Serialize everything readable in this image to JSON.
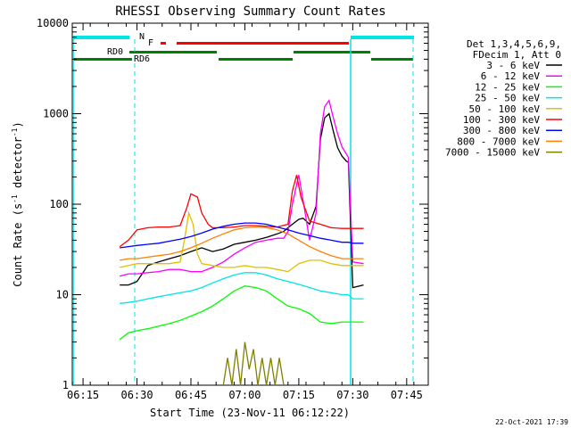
{
  "chart_data": {
    "type": "line",
    "title": "RHESSI Observing Summary Count Rates",
    "xlabel": "Start Time (23-Nov-11 06:12:22)",
    "ylabel": "Count Rate (s^-1 detector^-1)",
    "ylabel_main": "Count Rate (s",
    "ylabel_sup1": "-1",
    "ylabel_mid": " detector",
    "ylabel_sup2": "-1",
    "ylabel_end": ")",
    "yscale": "log",
    "ylim": [
      1,
      10000
    ],
    "xlim": [
      6.2,
      7.85
    ],
    "x_unit": "hours UT",
    "x_ticks": [
      {
        "v": 6.25,
        "label": "06:15"
      },
      {
        "v": 6.5,
        "label": "06:30"
      },
      {
        "v": 6.75,
        "label": "06:45"
      },
      {
        "v": 7.0,
        "label": "07:00"
      },
      {
        "v": 7.25,
        "label": "07:15"
      },
      {
        "v": 7.5,
        "label": "07:30"
      },
      {
        "v": 7.75,
        "label": "07:45"
      }
    ],
    "y_ticks": [
      {
        "v": 1,
        "label": "1"
      },
      {
        "v": 10,
        "label": "10"
      },
      {
        "v": 100,
        "label": "100"
      },
      {
        "v": 1000,
        "label": "1000"
      },
      {
        "v": 10000,
        "label": "10000"
      }
    ],
    "legend_header": [
      "Det 1,3,4,5,6,9,",
      "FDecim 1, Att 0"
    ],
    "legend_position": "right",
    "series": [
      {
        "name": "3 - 6 keV",
        "color": "#000000",
        "points": [
          [
            6.42,
            12.8
          ],
          [
            6.46,
            12.8
          ],
          [
            6.5,
            14
          ],
          [
            6.55,
            21
          ],
          [
            6.6,
            23
          ],
          [
            6.65,
            25
          ],
          [
            6.7,
            27
          ],
          [
            6.75,
            30
          ],
          [
            6.8,
            33
          ],
          [
            6.85,
            30
          ],
          [
            6.9,
            32
          ],
          [
            6.95,
            36
          ],
          [
            7.0,
            38
          ],
          [
            7.05,
            40
          ],
          [
            7.1,
            43
          ],
          [
            7.15,
            47
          ],
          [
            7.18,
            50
          ],
          [
            7.2,
            55
          ],
          [
            7.22,
            60
          ],
          [
            7.25,
            68
          ],
          [
            7.27,
            70
          ],
          [
            7.3,
            60
          ],
          [
            7.33,
            95
          ],
          [
            7.35,
            520
          ],
          [
            7.37,
            900
          ],
          [
            7.39,
            1000
          ],
          [
            7.41,
            640
          ],
          [
            7.43,
            420
          ],
          [
            7.45,
            340
          ],
          [
            7.47,
            300
          ],
          [
            7.48,
            290
          ],
          [
            7.5,
            12
          ],
          [
            7.55,
            12.8
          ]
        ]
      },
      {
        "name": "6 - 12 keV",
        "color": "#ff00ff",
        "points": [
          [
            6.42,
            16
          ],
          [
            6.46,
            17
          ],
          [
            6.5,
            17
          ],
          [
            6.55,
            17.5
          ],
          [
            6.6,
            18
          ],
          [
            6.65,
            19
          ],
          [
            6.7,
            19
          ],
          [
            6.75,
            18
          ],
          [
            6.8,
            18
          ],
          [
            6.85,
            20
          ],
          [
            6.9,
            23
          ],
          [
            6.95,
            28
          ],
          [
            7.0,
            33
          ],
          [
            7.05,
            38
          ],
          [
            7.1,
            40
          ],
          [
            7.15,
            42
          ],
          [
            7.18,
            42
          ],
          [
            7.2,
            50
          ],
          [
            7.22,
            100
          ],
          [
            7.25,
            210
          ],
          [
            7.27,
            110
          ],
          [
            7.3,
            40
          ],
          [
            7.33,
            80
          ],
          [
            7.35,
            600
          ],
          [
            7.37,
            1200
          ],
          [
            7.39,
            1400
          ],
          [
            7.41,
            900
          ],
          [
            7.43,
            600
          ],
          [
            7.45,
            430
          ],
          [
            7.47,
            360
          ],
          [
            7.48,
            330
          ],
          [
            7.5,
            23
          ],
          [
            7.55,
            22
          ]
        ]
      },
      {
        "name": "12 - 25 keV",
        "color": "#00ff00",
        "points": [
          [
            6.42,
            3.2
          ],
          [
            6.46,
            3.8
          ],
          [
            6.5,
            4.0
          ],
          [
            6.55,
            4.2
          ],
          [
            6.6,
            4.5
          ],
          [
            6.65,
            4.8
          ],
          [
            6.7,
            5.2
          ],
          [
            6.75,
            5.8
          ],
          [
            6.8,
            6.5
          ],
          [
            6.85,
            7.5
          ],
          [
            6.9,
            9
          ],
          [
            6.95,
            11
          ],
          [
            7.0,
            12.5
          ],
          [
            7.05,
            12
          ],
          [
            7.1,
            11
          ],
          [
            7.15,
            9
          ],
          [
            7.2,
            7.5
          ],
          [
            7.25,
            7
          ],
          [
            7.3,
            6.2
          ],
          [
            7.35,
            5
          ],
          [
            7.4,
            4.8
          ],
          [
            7.45,
            5
          ],
          [
            7.48,
            5
          ],
          [
            7.5,
            5
          ],
          [
            7.55,
            5
          ]
        ]
      },
      {
        "name": "25 - 50 keV",
        "color": "#00e5e5",
        "points": [
          [
            6.42,
            8
          ],
          [
            6.46,
            8.2
          ],
          [
            6.5,
            8.5
          ],
          [
            6.55,
            9
          ],
          [
            6.6,
            9.5
          ],
          [
            6.65,
            10
          ],
          [
            6.7,
            10.5
          ],
          [
            6.75,
            11
          ],
          [
            6.8,
            12
          ],
          [
            6.85,
            13.5
          ],
          [
            6.9,
            15
          ],
          [
            6.95,
            16.5
          ],
          [
            7.0,
            17.5
          ],
          [
            7.05,
            17.5
          ],
          [
            7.1,
            16.5
          ],
          [
            7.15,
            15
          ],
          [
            7.2,
            14
          ],
          [
            7.25,
            13
          ],
          [
            7.3,
            12
          ],
          [
            7.35,
            11
          ],
          [
            7.4,
            10.5
          ],
          [
            7.45,
            10
          ],
          [
            7.48,
            10
          ],
          [
            7.5,
            9
          ],
          [
            7.55,
            9
          ]
        ]
      },
      {
        "name": "50 - 100 keV",
        "color": "#e0c000",
        "points": [
          [
            6.42,
            20
          ],
          [
            6.46,
            21
          ],
          [
            6.5,
            22
          ],
          [
            6.55,
            22
          ],
          [
            6.6,
            22
          ],
          [
            6.65,
            22
          ],
          [
            6.7,
            23
          ],
          [
            6.72,
            40
          ],
          [
            6.74,
            80
          ],
          [
            6.76,
            60
          ],
          [
            6.78,
            28
          ],
          [
            6.8,
            22
          ],
          [
            6.85,
            21
          ],
          [
            6.9,
            20
          ],
          [
            6.95,
            20
          ],
          [
            7.0,
            21
          ],
          [
            7.05,
            20
          ],
          [
            7.1,
            20
          ],
          [
            7.15,
            19
          ],
          [
            7.2,
            18
          ],
          [
            7.25,
            22
          ],
          [
            7.3,
            24
          ],
          [
            7.35,
            24
          ],
          [
            7.4,
            22
          ],
          [
            7.45,
            21
          ],
          [
            7.48,
            21
          ],
          [
            7.5,
            21
          ],
          [
            7.55,
            21
          ]
        ]
      },
      {
        "name": "100 - 300 keV",
        "color": "#ff0000",
        "points": [
          [
            6.42,
            34
          ],
          [
            6.46,
            40
          ],
          [
            6.5,
            52
          ],
          [
            6.55,
            55
          ],
          [
            6.6,
            56
          ],
          [
            6.65,
            56
          ],
          [
            6.7,
            58
          ],
          [
            6.73,
            90
          ],
          [
            6.75,
            130
          ],
          [
            6.78,
            120
          ],
          [
            6.8,
            80
          ],
          [
            6.83,
            60
          ],
          [
            6.85,
            55
          ],
          [
            6.9,
            55
          ],
          [
            6.95,
            56
          ],
          [
            7.0,
            58
          ],
          [
            7.05,
            58
          ],
          [
            7.1,
            57
          ],
          [
            7.15,
            56
          ],
          [
            7.2,
            60
          ],
          [
            7.22,
            140
          ],
          [
            7.24,
            210
          ],
          [
            7.26,
            120
          ],
          [
            7.3,
            65
          ],
          [
            7.35,
            60
          ],
          [
            7.4,
            55
          ],
          [
            7.45,
            54
          ],
          [
            7.48,
            54
          ],
          [
            7.5,
            54
          ],
          [
            7.55,
            54
          ]
        ]
      },
      {
        "name": "300 - 800 keV",
        "color": "#0000ff",
        "points": [
          [
            6.42,
            33
          ],
          [
            6.46,
            34
          ],
          [
            6.5,
            35
          ],
          [
            6.55,
            36
          ],
          [
            6.6,
            37
          ],
          [
            6.65,
            39
          ],
          [
            6.7,
            41
          ],
          [
            6.75,
            44
          ],
          [
            6.8,
            48
          ],
          [
            6.85,
            53
          ],
          [
            6.9,
            57
          ],
          [
            6.95,
            60
          ],
          [
            7.0,
            62
          ],
          [
            7.05,
            62
          ],
          [
            7.1,
            60
          ],
          [
            7.15,
            56
          ],
          [
            7.2,
            52
          ],
          [
            7.25,
            48
          ],
          [
            7.3,
            45
          ],
          [
            7.35,
            42
          ],
          [
            7.4,
            40
          ],
          [
            7.45,
            38
          ],
          [
            7.48,
            38
          ],
          [
            7.5,
            37
          ],
          [
            7.55,
            37
          ]
        ]
      },
      {
        "name": "800 - 7000 keV",
        "color": "#ff8000",
        "points": [
          [
            6.42,
            24
          ],
          [
            6.46,
            25
          ],
          [
            6.5,
            25
          ],
          [
            6.55,
            26
          ],
          [
            6.6,
            27
          ],
          [
            6.65,
            28
          ],
          [
            6.7,
            30
          ],
          [
            6.75,
            33
          ],
          [
            6.8,
            37
          ],
          [
            6.85,
            42
          ],
          [
            6.9,
            47
          ],
          [
            6.95,
            52
          ],
          [
            7.0,
            55
          ],
          [
            7.05,
            56
          ],
          [
            7.1,
            55
          ],
          [
            7.15,
            52
          ],
          [
            7.2,
            47
          ],
          [
            7.25,
            40
          ],
          [
            7.3,
            34
          ],
          [
            7.35,
            30
          ],
          [
            7.4,
            27
          ],
          [
            7.45,
            25
          ],
          [
            7.48,
            25
          ],
          [
            7.5,
            25
          ],
          [
            7.55,
            25
          ]
        ]
      },
      {
        "name": "7000 - 15000 keV",
        "color": "#808000",
        "points": [
          [
            6.9,
            1
          ],
          [
            6.92,
            2
          ],
          [
            6.94,
            1
          ],
          [
            6.96,
            2.5
          ],
          [
            6.98,
            1
          ],
          [
            7.0,
            3
          ],
          [
            7.02,
            1.5
          ],
          [
            7.04,
            2.5
          ],
          [
            7.06,
            1
          ],
          [
            7.08,
            2
          ],
          [
            7.1,
            1
          ],
          [
            7.12,
            2
          ],
          [
            7.14,
            1
          ],
          [
            7.16,
            2
          ],
          [
            7.18,
            1
          ]
        ]
      }
    ],
    "annotations": [
      {
        "label": "N",
        "color": "#00e5e5"
      },
      {
        "label": "F",
        "color": "#ff0000"
      },
      {
        "label": "RD0",
        "color": "#008000"
      },
      {
        "label": "RD6",
        "color": "#008000"
      }
    ],
    "timestamp": "22-Oct-2021 17:39"
  }
}
